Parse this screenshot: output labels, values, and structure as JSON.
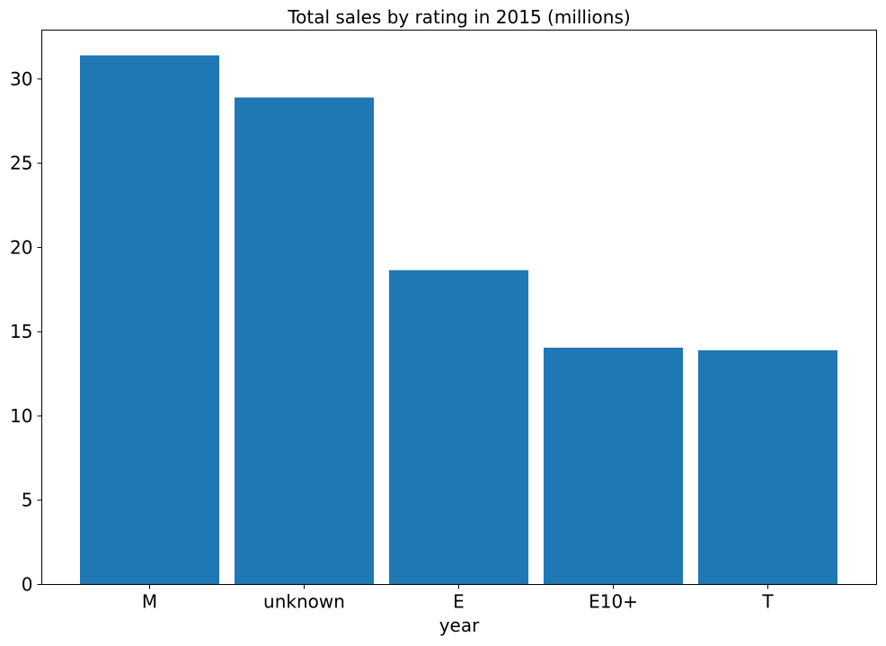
{
  "chart_data": {
    "type": "bar",
    "title": "Total sales by rating in 2015 (millions)",
    "xlabel": "year",
    "ylabel": "",
    "categories": [
      "M",
      "unknown",
      "E",
      "E10+",
      "T"
    ],
    "values": [
      31.4,
      28.9,
      18.65,
      14.05,
      13.9
    ],
    "ylim": [
      0,
      32.9
    ],
    "yticks": [
      0,
      5,
      10,
      15,
      20,
      25,
      30
    ],
    "bar_color": "#1f77b4",
    "grid": false,
    "legend": "none"
  }
}
